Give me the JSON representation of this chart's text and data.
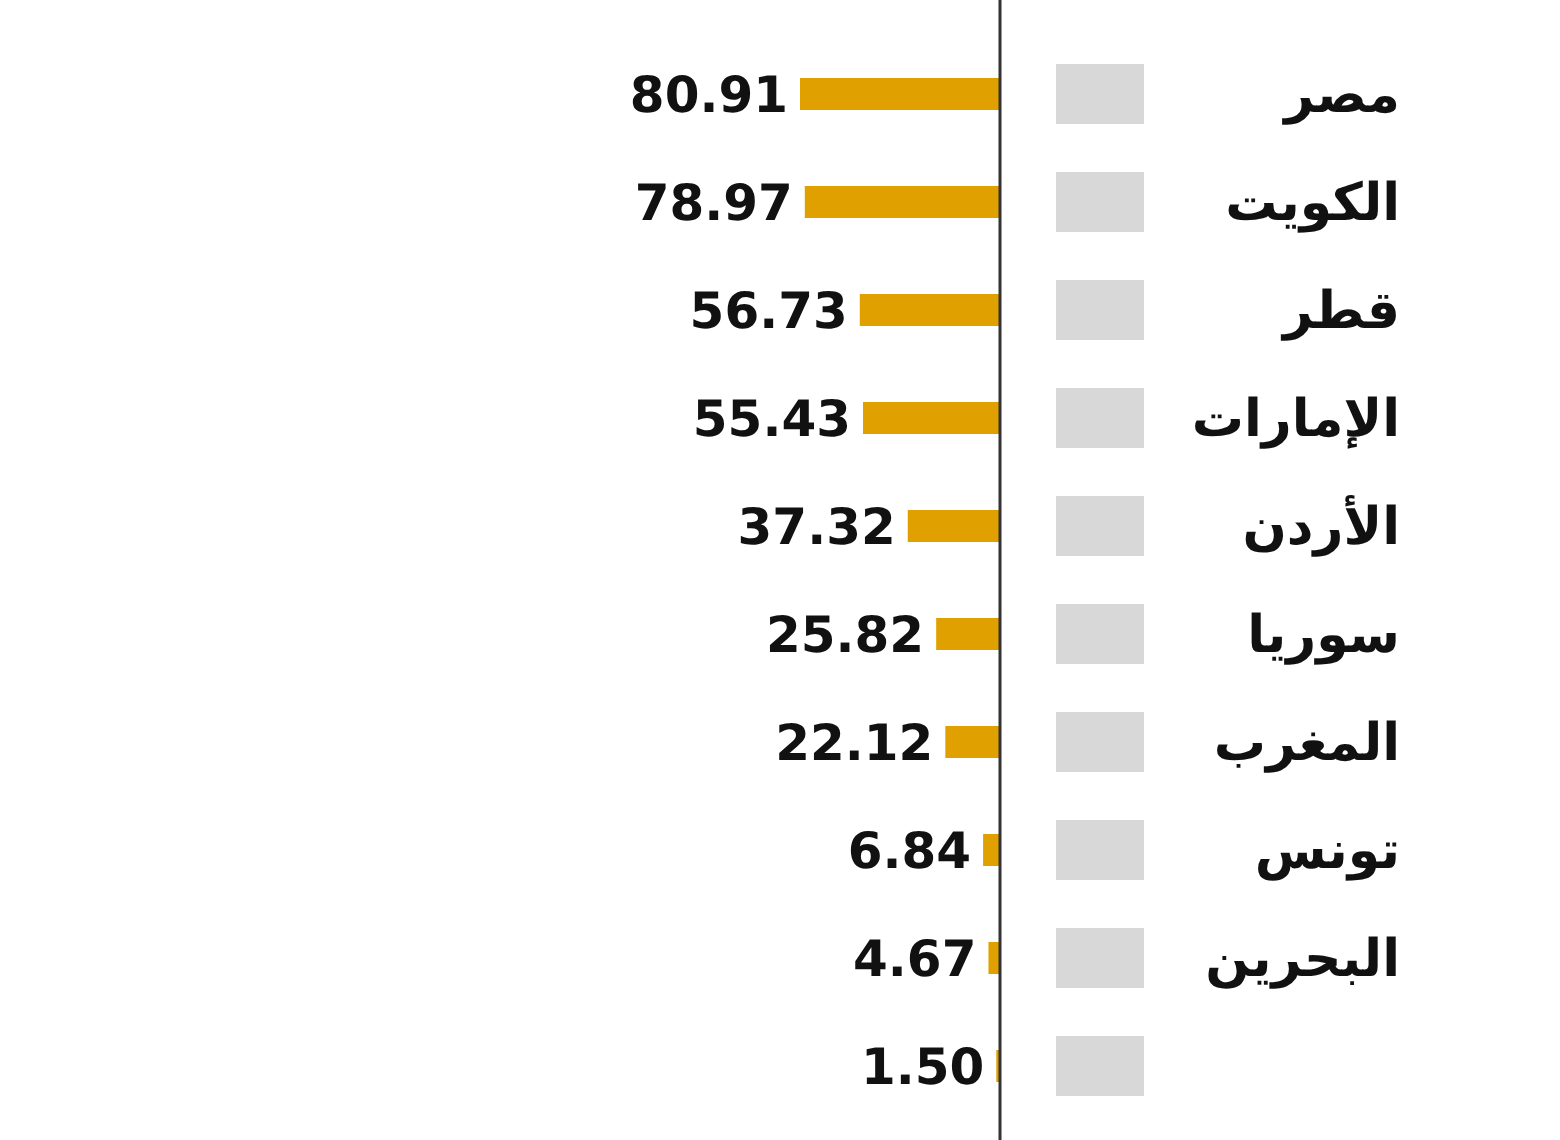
{
  "chart_data": {
    "type": "bar",
    "orientation": "horizontal",
    "categories": [
      "مصر",
      "الكويت",
      "قطر",
      "الإمارات",
      "الأردن",
      "سوريا",
      "المغرب",
      "تونس",
      "البحرين",
      null
    ],
    "values": [
      80.91,
      78.97,
      56.73,
      55.43,
      37.32,
      25.82,
      22.12,
      6.84,
      4.67,
      1.5
    ],
    "value_labels": [
      "80.91",
      "78.97",
      "56.73",
      "55.43",
      "37.32",
      "25.82",
      "22.12",
      "6.84",
      "4.67",
      "1.50"
    ],
    "color": "#e0a100"
  }
}
